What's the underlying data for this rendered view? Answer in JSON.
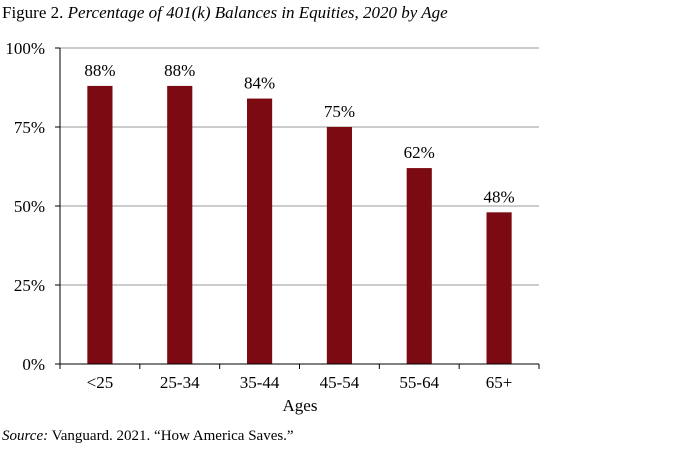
{
  "figure": {
    "label": "Figure 2.",
    "title": "Percentage of 401(k) Balances in Equities, 2020 by Age"
  },
  "source": {
    "label": "Source:",
    "text": "Vanguard. 2021. “How America Saves.”"
  },
  "colors": {
    "bar": "#7b0a12",
    "gridline": "#9a9a9a",
    "axis": "#000000"
  },
  "chart_data": {
    "type": "bar",
    "categories": [
      "<25",
      "25-34",
      "35-44",
      "45-54",
      "55-64",
      "65+"
    ],
    "values": [
      88,
      88,
      84,
      75,
      62,
      48
    ],
    "data_labels": [
      "88%",
      "88%",
      "84%",
      "75%",
      "62%",
      "48%"
    ],
    "title": "Percentage of 401(k) Balances in Equities, 2020 by Age",
    "xlabel": "Ages",
    "ylabel": "",
    "ylim": [
      0,
      100
    ],
    "yticks": [
      0,
      25,
      50,
      75,
      100
    ],
    "ytick_labels": [
      "0%",
      "25%",
      "50%",
      "75%",
      "100%"
    ],
    "grid": true,
    "legend": "none"
  }
}
